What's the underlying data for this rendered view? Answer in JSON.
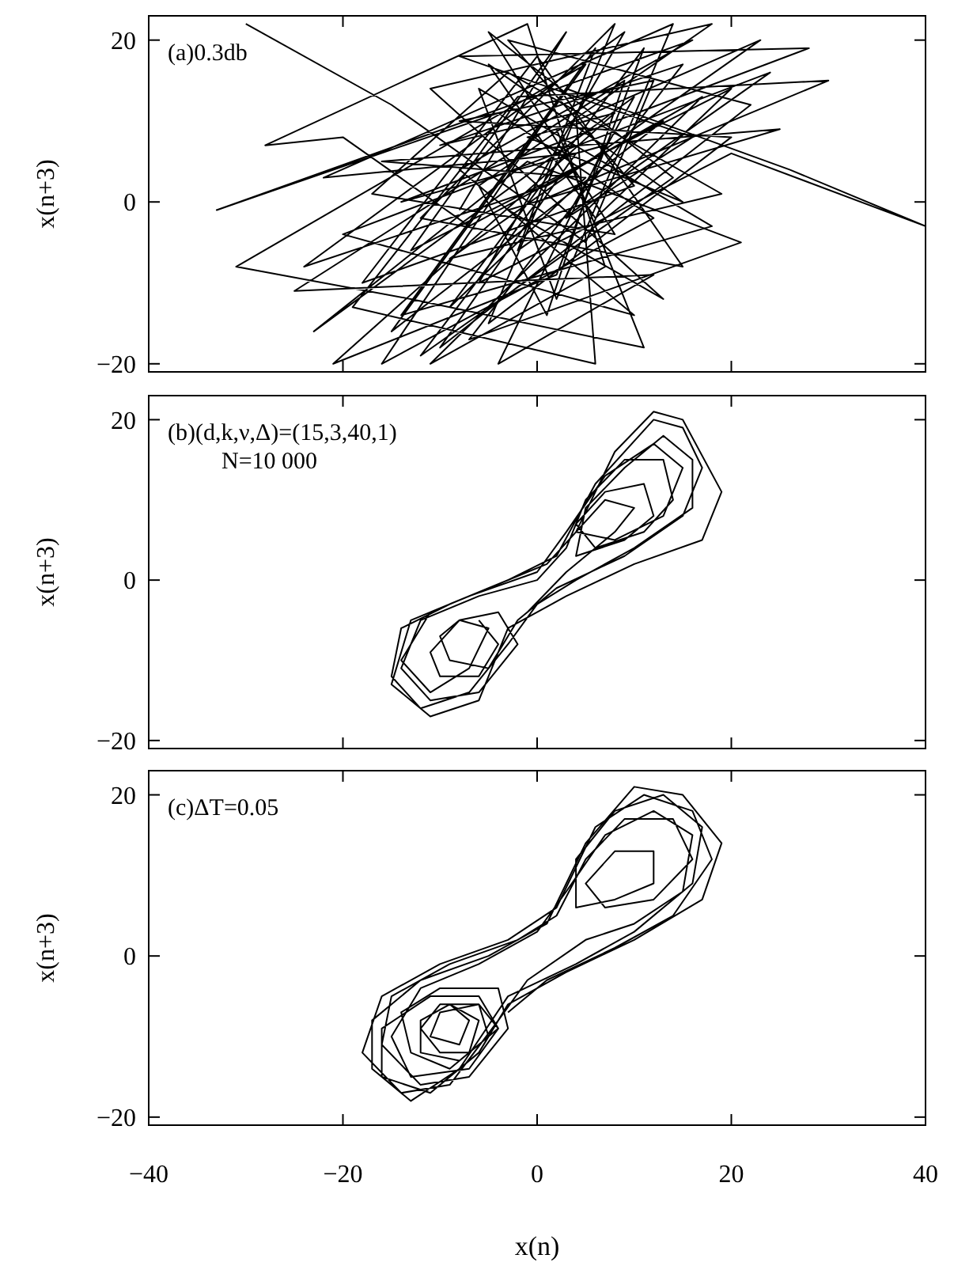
{
  "chart_data": [
    {
      "type": "line",
      "ylabel": "x(n+3)",
      "annotations": [
        "(a)0.3db"
      ],
      "xlim": [
        -40,
        40
      ],
      "xticks": [
        -40,
        -20,
        0,
        20,
        40
      ],
      "ylim": [
        -21,
        23
      ],
      "yticks": [
        -20,
        0,
        20
      ],
      "tick_labels": "y",
      "series": [
        {
          "color": "#000000",
          "x": [
            -30,
            -15,
            5,
            12,
            -8,
            20,
            -5,
            8,
            -12,
            15,
            0,
            -18,
            10,
            -3,
            22,
            -10,
            4,
            -22,
            14,
            2,
            -6,
            18,
            -14,
            6,
            -2,
            24,
            -20,
            10,
            -8,
            16,
            -33,
            -4,
            12,
            -16,
            3,
            26,
            40,
            20,
            -6,
            9,
            -24,
            1,
            17,
            -11,
            7,
            -1,
            -28,
            -20,
            -7,
            13,
            -15,
            5,
            -31,
            -13,
            11,
            2,
            23,
            -9,
            19,
            -3,
            -17,
            8,
            -5,
            14,
            -12,
            0,
            30,
            -2,
            -19,
            6,
            4,
            -10,
            15,
            -7,
            21,
            -1,
            -23,
            10,
            3,
            16,
            -8,
            28,
            -14,
            7,
            -4,
            12,
            -25,
            9,
            1,
            -6,
            18,
            -11,
            13,
            -3,
            25,
            -16,
            5,
            -9,
            11,
            2,
            -21,
            8,
            -1,
            15,
            -5,
            6,
            20,
            -13,
            3,
            -8
          ],
          "values": [
            22,
            12,
            -5,
            15,
            10,
            8,
            -15,
            22,
            -2,
            -8,
            18,
            -10,
            2,
            20,
            12,
            -18,
            6,
            3,
            22,
            -12,
            14,
            -3,
            -14,
            19,
            -6,
            16,
            -4,
            -14,
            4,
            20,
            -1,
            11,
            -2,
            -20,
            14,
            4,
            -3,
            6,
            -10,
            21,
            -8,
            2,
            13,
            -20,
            -8,
            22,
            7,
            8,
            -3,
            10,
            -16,
            17,
            -8,
            -12,
            -18,
            9,
            20,
            -7,
            1,
            16,
            1,
            -4,
            21,
            3,
            -19,
            0,
            15,
            13,
            -13,
            -20,
            11,
            7,
            17,
            -17,
            -5,
            5,
            -16,
            13,
            -2,
            8,
            18,
            19,
            0,
            7,
            -20,
            -9,
            -11,
            15,
            -14,
            2,
            22,
            14,
            -12,
            -1,
            9,
            5,
            3,
            -13,
            19,
            -9,
            -20,
            11,
            8,
            0,
            17,
            -2,
            14,
            -6,
            21,
            -1
          ]
        }
      ]
    },
    {
      "type": "line",
      "ylabel": "x(n+3)",
      "annotations": [
        "(b)(d,k,ν,Δ)=(15,3,40,1)",
        "N=10 000"
      ],
      "xlim": [
        -40,
        40
      ],
      "xticks": [
        -40,
        -20,
        0,
        20,
        40
      ],
      "ylim": [
        -21,
        23
      ],
      "yticks": [
        -20,
        0,
        20
      ],
      "tick_labels": "y",
      "series": [
        {
          "color": "#000000",
          "x": [
            -6,
            -4,
            -6,
            -10,
            -11,
            -8,
            -4,
            -2,
            -6,
            -11,
            -14,
            -12,
            -6,
            0,
            3,
            5,
            9,
            13,
            14,
            11,
            6,
            4,
            7,
            11,
            12,
            9,
            4,
            5,
            9,
            13,
            16,
            16,
            10,
            4,
            0,
            -3,
            -7,
            -12,
            -15,
            -14,
            -9,
            -3,
            2,
            6,
            12,
            15,
            17,
            15,
            9,
            2,
            -2,
            -5,
            -9,
            -10,
            -8,
            -5,
            -7,
            -11,
            -14,
            -11,
            -5,
            1,
            4,
            8,
            12,
            15,
            19,
            17,
            10,
            3,
            -3,
            -6,
            -11,
            -15,
            -13,
            -7,
            0,
            3,
            7,
            12,
            15,
            13,
            8,
            4,
            7,
            10,
            8,
            3,
            -1
          ],
          "values": [
            -5,
            -8,
            -12,
            -12,
            -9,
            -5,
            -4,
            -8,
            -14,
            -15,
            -11,
            -5,
            -2,
            0,
            4,
            10,
            15,
            15,
            10,
            6,
            4,
            7,
            11,
            12,
            8,
            5,
            3,
            9,
            14,
            18,
            15,
            9,
            4,
            0,
            -3,
            -8,
            -14,
            -16,
            -12,
            -6,
            -3,
            0,
            3,
            12,
            20,
            19,
            14,
            8,
            3,
            -1,
            -5,
            -11,
            -10,
            -7,
            -5,
            -6,
            -11,
            -14,
            -10,
            -4,
            -1,
            2,
            6,
            16,
            21,
            20,
            11,
            5,
            2,
            -2,
            -6,
            -15,
            -17,
            -13,
            -5,
            -2,
            1,
            6,
            13,
            17,
            14,
            8,
            5,
            6,
            10,
            9,
            6,
            1,
            -4
          ]
        }
      ]
    },
    {
      "type": "line",
      "xlabel": "x(n)",
      "ylabel": "x(n+3)",
      "annotations": [
        "(c)ΔT=0.05"
      ],
      "xlim": [
        -40,
        40
      ],
      "xticks": [
        -40,
        -20,
        0,
        20,
        40
      ],
      "ylim": [
        -21,
        23
      ],
      "yticks": [
        -20,
        0,
        20
      ],
      "series": [
        {
          "color": "#000000",
          "x": [
            -9,
            -6,
            -7,
            -10,
            -12,
            -10,
            -6,
            -5,
            -9,
            -13,
            -14,
            -10,
            -4,
            -3,
            -7,
            -12,
            -16,
            -15,
            -9,
            -2,
            2,
            5,
            9,
            14,
            16,
            12,
            7,
            5,
            8,
            12,
            12,
            8,
            4,
            4,
            8,
            13,
            17,
            16,
            10,
            4,
            -3,
            -8,
            -13,
            -17,
            -17,
            -12,
            -5,
            1,
            5,
            10,
            15,
            19,
            17,
            10,
            3,
            -3,
            -6,
            -11,
            -16,
            -16,
            -11,
            -6,
            -4,
            -8,
            -12,
            -12,
            -9,
            -7,
            -8,
            -11,
            -10,
            -6,
            -4,
            -7,
            -13,
            -15,
            -12,
            -6,
            0,
            3,
            7,
            12,
            16,
            15,
            10,
            5,
            -1,
            -4,
            -9,
            -14,
            -18,
            -16,
            -10,
            -3,
            2,
            6,
            11,
            16,
            18,
            14,
            8,
            1,
            -3
          ],
          "values": [
            -6,
            -8,
            -12,
            -12,
            -9,
            -6,
            -6,
            -10,
            -14,
            -12,
            -7,
            -4,
            -4,
            -9,
            -15,
            -16,
            -11,
            -5,
            -1,
            2,
            5,
            12,
            17,
            17,
            12,
            7,
            6,
            9,
            13,
            13,
            9,
            7,
            6,
            12,
            18,
            20,
            16,
            9,
            3,
            -1,
            -5,
            -14,
            -18,
            -14,
            -8,
            -3,
            0,
            4,
            14,
            21,
            20,
            14,
            7,
            2,
            -2,
            -6,
            -12,
            -17,
            -15,
            -9,
            -5,
            -5,
            -9,
            -13,
            -12,
            -8,
            -6,
            -8,
            -11,
            -10,
            -7,
            -6,
            -9,
            -14,
            -15,
            -10,
            -4,
            -1,
            3,
            8,
            15,
            18,
            15,
            8,
            4,
            2,
            -3,
            -8,
            -16,
            -17,
            -12,
            -5,
            -1,
            2,
            6,
            16,
            20,
            18,
            12,
            5,
            1,
            -3,
            -7
          ]
        }
      ]
    }
  ]
}
